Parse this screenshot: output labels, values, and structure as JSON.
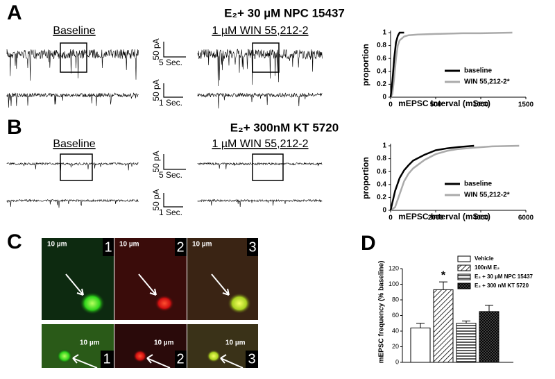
{
  "panels": {
    "a": {
      "label": "A",
      "title": "E₂+ 30 µM NPC 15437",
      "left_title": "Baseline",
      "right_title": "1 µM WIN 55,212-2",
      "scale_top": {
        "current": "50 pA",
        "time": "5 Sec."
      },
      "scale_bottom": {
        "current": "50 pA",
        "time": "1 Sec."
      }
    },
    "b": {
      "label": "B",
      "title": "E₂+ 300nM KT 5720",
      "left_title": "Baseline",
      "right_title": "1 µM WIN 55,212-2",
      "scale_top": {
        "current": "50 pA",
        "time": "5 Sec."
      },
      "scale_bottom": {
        "current": "50 pA",
        "time": "1 Sec."
      }
    },
    "c": {
      "label": "C",
      "scale_labels": [
        "10 µm",
        "10 µm",
        "10 µm",
        "10 µm",
        "10 µm",
        "10 µm"
      ],
      "numbers": [
        "1",
        "2",
        "3",
        "1",
        "2",
        "3"
      ]
    },
    "d": {
      "label": "D"
    }
  },
  "chart_data": [
    {
      "type": "line",
      "x_label": "mEPSC Interval (mSec)",
      "y_label": "proportion",
      "x": [
        0,
        20,
        40,
        60,
        80,
        100,
        150,
        200,
        300,
        500,
        800,
        1000,
        1350
      ],
      "series": [
        {
          "name": "baseline",
          "color": "#000000",
          "values": [
            0,
            0.25,
            0.6,
            0.85,
            0.95,
            1,
            1,
            null,
            null,
            null,
            null,
            null,
            null
          ]
        },
        {
          "name": "WIN 55,212-2*",
          "color": "#aaaaaa",
          "values": [
            0,
            0.05,
            0.3,
            0.6,
            0.8,
            0.88,
            0.94,
            0.96,
            0.97,
            0.98,
            0.99,
            0.99,
            1
          ]
        }
      ],
      "xlim": [
        0,
        1500
      ],
      "xticks": [
        0,
        500,
        1000,
        1500
      ],
      "ylim": [
        0,
        1
      ],
      "yticks": [
        0,
        0.2,
        0.4,
        0.6,
        0.8,
        1
      ],
      "legend": "lower right"
    },
    {
      "type": "line",
      "x_label": "mEPSC Interval (mSec)",
      "y_label": "proportion",
      "x": [
        0,
        200,
        400,
        600,
        800,
        1000,
        1500,
        2000,
        2500,
        3000,
        3700,
        4500,
        5700
      ],
      "series": [
        {
          "name": "baseline",
          "color": "#000000",
          "values": [
            0,
            0.3,
            0.5,
            0.62,
            0.7,
            0.77,
            0.86,
            0.93,
            0.96,
            0.98,
            1,
            null,
            null
          ]
        },
        {
          "name": "WIN 55,212-2*",
          "color": "#aaaaaa",
          "values": [
            0,
            0.05,
            0.25,
            0.45,
            0.57,
            0.65,
            0.78,
            0.87,
            0.92,
            0.95,
            0.97,
            0.99,
            1
          ]
        }
      ],
      "xlim": [
        0,
        6000
      ],
      "xticks": [
        0,
        2000,
        4000,
        6000
      ],
      "ylim": [
        0,
        1
      ],
      "yticks": [
        0,
        0.2,
        0.4,
        0.6,
        0.8,
        1
      ],
      "legend": "lower right"
    },
    {
      "type": "bar",
      "y_label": "mEPSC frequency (% baseline)",
      "categories": [
        "Vehicle",
        "100nM E₂",
        "E₂ + 30 µM NPC 15437",
        "E₂ + 300 nM KT 5720"
      ],
      "values": [
        44,
        93,
        50,
        65
      ],
      "errors": [
        6,
        10,
        3,
        8
      ],
      "fills": [
        "white",
        "hatch",
        "hlines",
        "cross"
      ],
      "annotations": [
        {
          "category": 1,
          "text": "*"
        }
      ],
      "ylim": [
        0,
        120
      ],
      "yticks": [
        0,
        20,
        40,
        60,
        80,
        100,
        120
      ]
    }
  ]
}
